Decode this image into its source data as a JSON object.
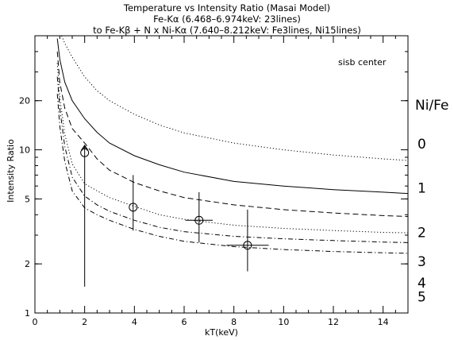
{
  "chart_data": {
    "type": "line",
    "title": [
      "Temperature vs Intensity Ratio (Masai Model)",
      "Fe-Kα (6.468–6.974keV: 23lines)",
      "to Fe-Kβ + N x Ni-Kα (7.640–8.212keV: Fe3lines, Ni15lines)"
    ],
    "annotation": "sisb center",
    "xlabel": "kT(keV)",
    "ylabel": "Intensity Ratio",
    "xlim": [
      0,
      15
    ],
    "ylim": [
      1,
      50
    ],
    "y_scale": "log",
    "x_ticks": [
      0,
      2,
      4,
      6,
      8,
      10,
      12,
      14
    ],
    "y_ticks": [
      1,
      2,
      5,
      10,
      20
    ],
    "right_label_title": "Ni/Fe",
    "grid": false,
    "series": [
      {
        "label": "0",
        "dash": "dot",
        "x": [
          0.9,
          1.0,
          1.2,
          1.5,
          2,
          2.5,
          3,
          4,
          5,
          6,
          8,
          10,
          12,
          14,
          15
        ],
        "y": [
          60,
          53,
          45,
          37,
          28,
          23,
          20,
          16.5,
          14.2,
          12.7,
          11,
          10,
          9.3,
          8.8,
          8.6
        ]
      },
      {
        "label": "1",
        "dash": "solid",
        "x": [
          0.9,
          1.0,
          1.2,
          1.5,
          2,
          2.5,
          3,
          4,
          5,
          6,
          8,
          10,
          12,
          14,
          15
        ],
        "y": [
          48,
          36,
          26,
          20,
          15.5,
          12.8,
          11,
          9.2,
          8.1,
          7.3,
          6.4,
          6.0,
          5.7,
          5.5,
          5.4
        ]
      },
      {
        "label": "",
        "dash": "dash",
        "x": [
          0.9,
          1.0,
          1.2,
          1.5,
          2,
          2.5,
          3,
          4,
          5,
          6,
          8,
          10,
          12,
          14,
          15
        ],
        "y": [
          40,
          26,
          18,
          13.5,
          11,
          8.8,
          7.5,
          6.3,
          5.6,
          5.1,
          4.6,
          4.3,
          4.1,
          3.95,
          3.9
        ]
      },
      {
        "label": "2",
        "dash": "dot",
        "x": [
          0.9,
          1.0,
          1.2,
          1.5,
          2,
          2.5,
          3,
          4,
          5,
          6,
          8,
          10,
          12,
          14,
          15
        ],
        "y": [
          34,
          21,
          12.5,
          8.2,
          6.2,
          5.6,
          5.1,
          4.5,
          4.0,
          3.75,
          3.45,
          3.3,
          3.2,
          3.12,
          3.1
        ]
      },
      {
        "label": "",
        "dash": "dashdot",
        "x": [
          0.9,
          1.0,
          1.2,
          1.5,
          2,
          2.5,
          3,
          4,
          5,
          6,
          8,
          10,
          12,
          14,
          15
        ],
        "y": [
          28,
          18,
          10.5,
          6.8,
          5.2,
          4.6,
          4.2,
          3.7,
          3.35,
          3.15,
          2.95,
          2.85,
          2.78,
          2.72,
          2.7
        ]
      },
      {
        "label": "3",
        "dash": "dashdot",
        "x": [
          0.9,
          1.0,
          1.2,
          1.5,
          2,
          2.5,
          3,
          4,
          5,
          6,
          8,
          10,
          12,
          14,
          15
        ],
        "y": [
          22,
          14,
          8.5,
          5.6,
          4.4,
          4.0,
          3.7,
          3.25,
          2.95,
          2.75,
          2.55,
          2.45,
          2.38,
          2.34,
          2.32
        ]
      }
    ],
    "right_labels": [
      {
        "text": "0",
        "y": 11
      },
      {
        "text": "1",
        "y": 5.9
      },
      {
        "text": "2",
        "y": 3.15
      },
      {
        "text": "3",
        "y": 2.1
      },
      {
        "text": "4",
        "y": 1.55
      },
      {
        "text": "5",
        "y": 1.27
      }
    ],
    "observed_points": [
      {
        "x": 2.0,
        "y": 9.6,
        "x_err": 0,
        "y_lo": 1.45,
        "y_hi": 10.6,
        "lower_limit_arrow": true
      },
      {
        "x": 3.95,
        "y": 4.45,
        "x_err": 0,
        "y_lo": 3.2,
        "y_hi": 7.0,
        "lower_limit_arrow": false
      },
      {
        "x": 6.6,
        "y": 3.7,
        "x_err": 0.55,
        "y_lo": 2.7,
        "y_hi": 5.5,
        "lower_limit_arrow": false
      },
      {
        "x": 8.55,
        "y": 2.6,
        "x_err": 0.85,
        "y_lo": 1.8,
        "y_hi": 4.3,
        "lower_limit_arrow": false
      }
    ]
  }
}
